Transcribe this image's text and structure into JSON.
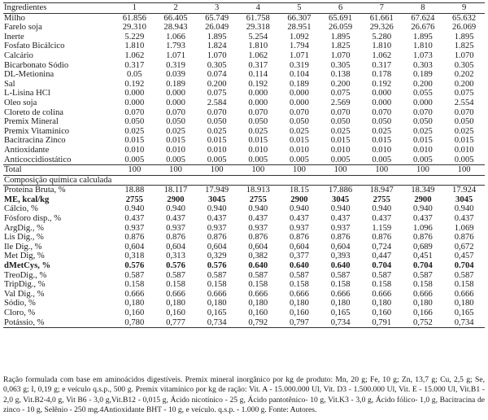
{
  "header": [
    "Ingredientes",
    "1",
    "2",
    "3",
    "4",
    "5",
    "6",
    "7",
    "8",
    "9"
  ],
  "ingredients": [
    {
      "name": "Milho",
      "values": [
        "61.856",
        "66.405",
        "65.749",
        "61.758",
        "66.307",
        "65.691",
        "61.661",
        "67.624",
        "65.632"
      ]
    },
    {
      "name": "Farelo soja",
      "values": [
        "29.310",
        "28.943",
        "26.049",
        "29.318",
        "28.951",
        "26.059",
        "29.326",
        "26.676",
        "26.069"
      ]
    },
    {
      "name": "Inerte",
      "values": [
        "5.229",
        "1.066",
        "1.895",
        "5.254",
        "1.092",
        "1.895",
        "5.280",
        "1.895",
        "1.895"
      ]
    },
    {
      "name": "Fosfato Bicálcico",
      "values": [
        "1.810",
        "1.793",
        "1.824",
        "1.810",
        "1.794",
        "1.825",
        "1.810",
        "1.810",
        "1.825"
      ]
    },
    {
      "name": "Calcário",
      "values": [
        "1.062",
        "1.071",
        "1.070",
        "1.062",
        "1.071",
        "1.070",
        "1.062",
        "1.073",
        "1.070"
      ]
    },
    {
      "name": "Bicarbonato Sódio",
      "values": [
        "0.317",
        "0.319",
        "0.305",
        "0.317",
        "0.319",
        "0.305",
        "0.317",
        "0.303",
        "0.305"
      ]
    },
    {
      "name": "DL-Metionina",
      "values": [
        "0.05",
        "0.039",
        "0.074",
        "0.114",
        "0.104",
        "0.138",
        "0.178",
        "0.189",
        "0.202"
      ]
    },
    {
      "name": "Sal",
      "values": [
        "0.192",
        "0.189",
        "0.200",
        "0.192",
        "0.189",
        "0.200",
        "0.192",
        "0.200",
        "0.200"
      ]
    },
    {
      "name": "L-Lisina HCl",
      "values": [
        "0.000",
        "0.000",
        "0.075",
        "0.000",
        "0.000",
        "0.075",
        "0.000",
        "0.055",
        "0.075"
      ]
    },
    {
      "name": "Óleo soja",
      "values": [
        "0.000",
        "0.000",
        "2.584",
        "0.000",
        "0.000",
        "2.569",
        "0.000",
        "0.000",
        "2.554"
      ]
    },
    {
      "name": "Cloreto de colina",
      "values": [
        "0.070",
        "0.070",
        "0.070",
        "0.070",
        "0.070",
        "0.070",
        "0.070",
        "0.070",
        "0.070"
      ]
    },
    {
      "name": "Premix Mineral",
      "values": [
        "0.050",
        "0.050",
        "0.050",
        "0.050",
        "0.050",
        "0.050",
        "0.050",
        "0.050",
        "0.050"
      ]
    },
    {
      "name": "Premix Vitamínico",
      "values": [
        "0.025",
        "0.025",
        "0.025",
        "0.025",
        "0.025",
        "0.025",
        "0.025",
        "0.025",
        "0.025"
      ]
    },
    {
      "name": "Bacitracina Zinco",
      "values": [
        "0.015",
        "0.015",
        "0.015",
        "0.015",
        "0.015",
        "0.015",
        "0.015",
        "0.015",
        "0.015"
      ]
    },
    {
      "name": "Antioxidante",
      "values": [
        "0.010",
        "0.010",
        "0.010",
        "0.010",
        "0.010",
        "0.010",
        "0.010",
        "0.010",
        "0.010"
      ]
    },
    {
      "name": "Anticoccidiostático",
      "values": [
        "0.005",
        "0.005",
        "0.005",
        "0.005",
        "0.005",
        "0.005",
        "0.005",
        "0.005",
        "0.005"
      ]
    }
  ],
  "total": {
    "name": "Total",
    "values": [
      "100",
      "100",
      "100",
      "100",
      "100",
      "100",
      "100",
      "100",
      "100"
    ]
  },
  "section_title": "Composição química calculada",
  "composition": [
    {
      "name": "Proteína Bruta, %",
      "values": [
        "18.88",
        "18.117",
        "17.949",
        "18.913",
        "18.15",
        "17.886",
        "18.947",
        "18.349",
        "17.924"
      ],
      "bold": false
    },
    {
      "name": "ME, kcal/kg",
      "values": [
        "2755",
        "2900",
        "3045",
        "2755",
        "2900",
        "3045",
        "2755",
        "2900",
        "3045"
      ],
      "bold": true
    },
    {
      "name": "Cálcio, %",
      "values": [
        "0.940",
        "0.940",
        "0.940",
        "0.940",
        "0.940",
        "0.940",
        "0.940",
        "0.940",
        "0.940"
      ],
      "bold": false
    },
    {
      "name": "Fósforo disp., %",
      "values": [
        "0.437",
        "0.437",
        "0.437",
        "0.437",
        "0.437",
        "0.437",
        "0.437",
        "0.437",
        "0.437"
      ],
      "bold": false
    },
    {
      "name": "ArgDig., %",
      "values": [
        "0.937",
        "0.937",
        "0.937",
        "0.937",
        "0.937",
        "0.937",
        "1.159",
        "1.096",
        "1.069"
      ],
      "bold": false
    },
    {
      "name": "Lis Dig., %",
      "values": [
        "0.876",
        "0.876",
        "0.876",
        "0.876",
        "0.876",
        "0.876",
        "0.876",
        "0.876",
        "0.876"
      ],
      "bold": false
    },
    {
      "name": "Ile Dig., %",
      "values": [
        "0,604",
        "0,604",
        "0,604",
        "0,604",
        "0,604",
        "0,604",
        "0,724",
        "0,689",
        "0,672"
      ],
      "bold": false
    },
    {
      "name": "Met Dig, %",
      "values": [
        "0,318",
        "0,313",
        "0,329",
        "0,382",
        "0,377",
        "0,393",
        "0,447",
        "0,451",
        "0,457"
      ],
      "bold": false
    },
    {
      "name": "dMetCys, %",
      "values": [
        "0.576",
        "0.576",
        "0.576",
        "0.640",
        "0.640",
        "0.640",
        "0.704",
        "0.704",
        "0.704"
      ],
      "bold": true
    },
    {
      "name": "TreoDig., %",
      "values": [
        "0.587",
        "0.587",
        "0.587",
        "0.587",
        "0.587",
        "0.587",
        "0.587",
        "0.587",
        "0.587"
      ],
      "bold": false
    },
    {
      "name": "TripDig., %",
      "values": [
        "0.158",
        "0.158",
        "0.158",
        "0.158",
        "0.158",
        "0.158",
        "0.158",
        "0.158",
        "0.158"
      ],
      "bold": false
    },
    {
      "name": "Val Dig., %",
      "values": [
        "0.666",
        "0.666",
        "0.666",
        "0.666",
        "0.666",
        "0.666",
        "0.666",
        "0.666",
        "0.666"
      ],
      "bold": false
    },
    {
      "name": "Sódio, %",
      "values": [
        "0,180",
        "0,180",
        "0,180",
        "0,180",
        "0,180",
        "0,180",
        "0,180",
        "0,180",
        "0,180"
      ],
      "bold": false
    },
    {
      "name": "Cloro, %",
      "values": [
        "0,160",
        "0,160",
        "0,165",
        "0,160",
        "0,160",
        "0,165",
        "0,160",
        "0,166",
        "0,165"
      ],
      "bold": false
    },
    {
      "name": "Potássio, %",
      "values": [
        "0,780",
        "0,777",
        "0,734",
        "0,792",
        "0,797",
        "0,734",
        "0,791",
        "0,752",
        "0,734"
      ],
      "bold": false
    }
  ],
  "footnote": "Ração formulada com base em aminoácidos digestíveis. Premix mineral inorgânico por kg de produto: Mn, 20 g; Fe, 10 g; Zn, 13,7 g; Cu, 2,5 g; Se, 0,063 g; I, 0,19 g; e veículo q.s.p., 500 g. Premix vitamínico por kg de ração: Vit. A - 15.000.000 Ul, Vit. D3 - 1.500.000 Ul, Vit. E - 15.000 Ul, Vit.B1 - 2,0 g, Vit.B2-4,0 g, Vit B6 - 3,0 g,Vit.B12 - 0,015 g, Ácido nicotínico - 25 g, Ácido pantotênico- 10 g, Vit.K3 - 3,0 g, Ácido fólico- 1,0 g, Bacitracina de zinco - 10 g, Selênio - 250 mg.4Antioxidante BHT - 10 g, e veículo. q.s.p. - 1.000 g. Fonte: Autores."
}
